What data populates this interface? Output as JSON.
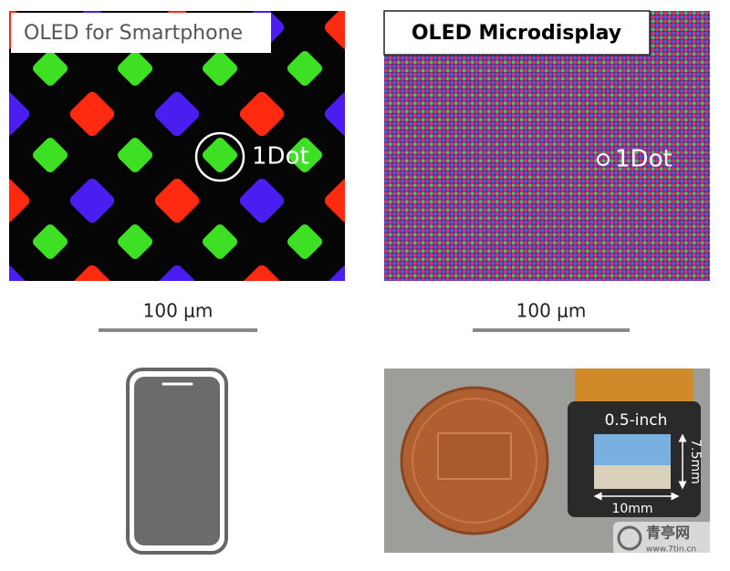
{
  "left": {
    "label": "OLED for Smartphone",
    "dot_label": "1Dot",
    "scale": "100 μm"
  },
  "right": {
    "label": "OLED Microdisplay",
    "dot_label": "1Dot",
    "scale": "100 μm",
    "photo": {
      "diagonal": "0.5-inch",
      "height": "7.5mm",
      "width": "10mm"
    }
  },
  "watermark": {
    "name": "青亭网",
    "url": "www.7tin.cn"
  }
}
